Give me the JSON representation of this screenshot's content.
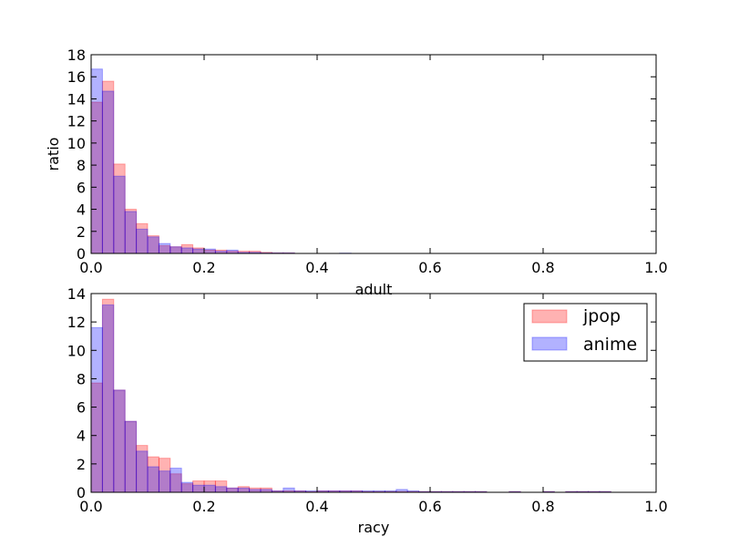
{
  "chart_data": [
    {
      "type": "histogram",
      "xlabel": "adult",
      "ylabel": "ratio",
      "xlim": [
        0.0,
        1.0
      ],
      "ylim": [
        0,
        18
      ],
      "xticks": [
        "0.0",
        "0.2",
        "0.4",
        "0.6",
        "0.8",
        "1.0"
      ],
      "yticks": [
        "0",
        "2",
        "4",
        "6",
        "8",
        "10",
        "12",
        "14",
        "16",
        "18"
      ],
      "bin_width": 0.02,
      "x": [
        0.0,
        0.02,
        0.04,
        0.06,
        0.08,
        0.1,
        0.12,
        0.14,
        0.16,
        0.18,
        0.2,
        0.22,
        0.24,
        0.26,
        0.28,
        0.3,
        0.32,
        0.34,
        0.36,
        0.38,
        0.4,
        0.42,
        0.44,
        0.46
      ],
      "series": [
        {
          "name": "jpop",
          "color": "#ff0000",
          "values": [
            13.7,
            15.6,
            8.1,
            4.0,
            2.7,
            1.6,
            0.7,
            0.6,
            0.8,
            0.5,
            0.3,
            0.3,
            0.2,
            0.2,
            0.2,
            0.1,
            0.05,
            0.05,
            0.0,
            0.0,
            0.0,
            0.0,
            0.0,
            0.0
          ]
        },
        {
          "name": "anime",
          "color": "#0000ff",
          "values": [
            16.7,
            14.7,
            7.0,
            3.8,
            2.2,
            1.5,
            0.9,
            0.6,
            0.5,
            0.4,
            0.4,
            0.2,
            0.3,
            0.1,
            0.1,
            0.05,
            0.05,
            0.05,
            0.0,
            0.0,
            0.0,
            0.0,
            0.03,
            0.0
          ]
        }
      ]
    },
    {
      "type": "histogram",
      "xlabel": "racy",
      "ylabel": "",
      "xlim": [
        0.0,
        1.0
      ],
      "ylim": [
        0,
        14
      ],
      "xticks": [
        "0.0",
        "0.2",
        "0.4",
        "0.6",
        "0.8",
        "1.0"
      ],
      "yticks": [
        "0",
        "2",
        "4",
        "6",
        "8",
        "10",
        "12",
        "14"
      ],
      "bin_width": 0.02,
      "x": [
        0.0,
        0.02,
        0.04,
        0.06,
        0.08,
        0.1,
        0.12,
        0.14,
        0.16,
        0.18,
        0.2,
        0.22,
        0.24,
        0.26,
        0.28,
        0.3,
        0.32,
        0.34,
        0.36,
        0.38,
        0.4,
        0.42,
        0.44,
        0.46,
        0.48,
        0.5,
        0.52,
        0.54,
        0.56,
        0.58,
        0.6,
        0.62,
        0.64,
        0.66,
        0.68,
        0.7,
        0.72,
        0.74,
        0.76,
        0.78,
        0.8,
        0.82,
        0.84,
        0.86,
        0.88,
        0.9,
        0.92
      ],
      "series": [
        {
          "name": "jpop",
          "color": "#ff0000",
          "values": [
            7.7,
            13.6,
            7.2,
            5.0,
            3.3,
            2.5,
            2.4,
            1.3,
            0.6,
            0.8,
            0.8,
            0.8,
            0.3,
            0.4,
            0.3,
            0.3,
            0.1,
            0.1,
            0.1,
            0.05,
            0.1,
            0.1,
            0.1,
            0.1,
            0.05,
            0.05,
            0.05,
            0.05,
            0.05,
            0.05,
            0.05,
            0.05,
            0.05,
            0.05,
            0.05,
            0.0,
            0.0,
            0.05,
            0.0,
            0.0,
            0.05,
            0.0,
            0.05,
            0.05,
            0.05,
            0.05,
            0.0
          ]
        },
        {
          "name": "anime",
          "color": "#0000ff",
          "values": [
            11.6,
            13.2,
            7.2,
            5.0,
            2.9,
            1.8,
            1.5,
            1.7,
            0.7,
            0.5,
            0.5,
            0.4,
            0.3,
            0.3,
            0.2,
            0.2,
            0.1,
            0.3,
            0.1,
            0.1,
            0.1,
            0.1,
            0.1,
            0.1,
            0.1,
            0.1,
            0.1,
            0.2,
            0.1,
            0.05,
            0.05,
            0.05,
            0.05,
            0.05,
            0.05,
            0.0,
            0.0,
            0.05,
            0.0,
            0.0,
            0.05,
            0.0,
            0.05,
            0.05,
            0.05,
            0.05,
            0.0
          ]
        }
      ],
      "legend": {
        "placement": "top-right",
        "entries": [
          "jpop",
          "anime"
        ]
      }
    }
  ]
}
